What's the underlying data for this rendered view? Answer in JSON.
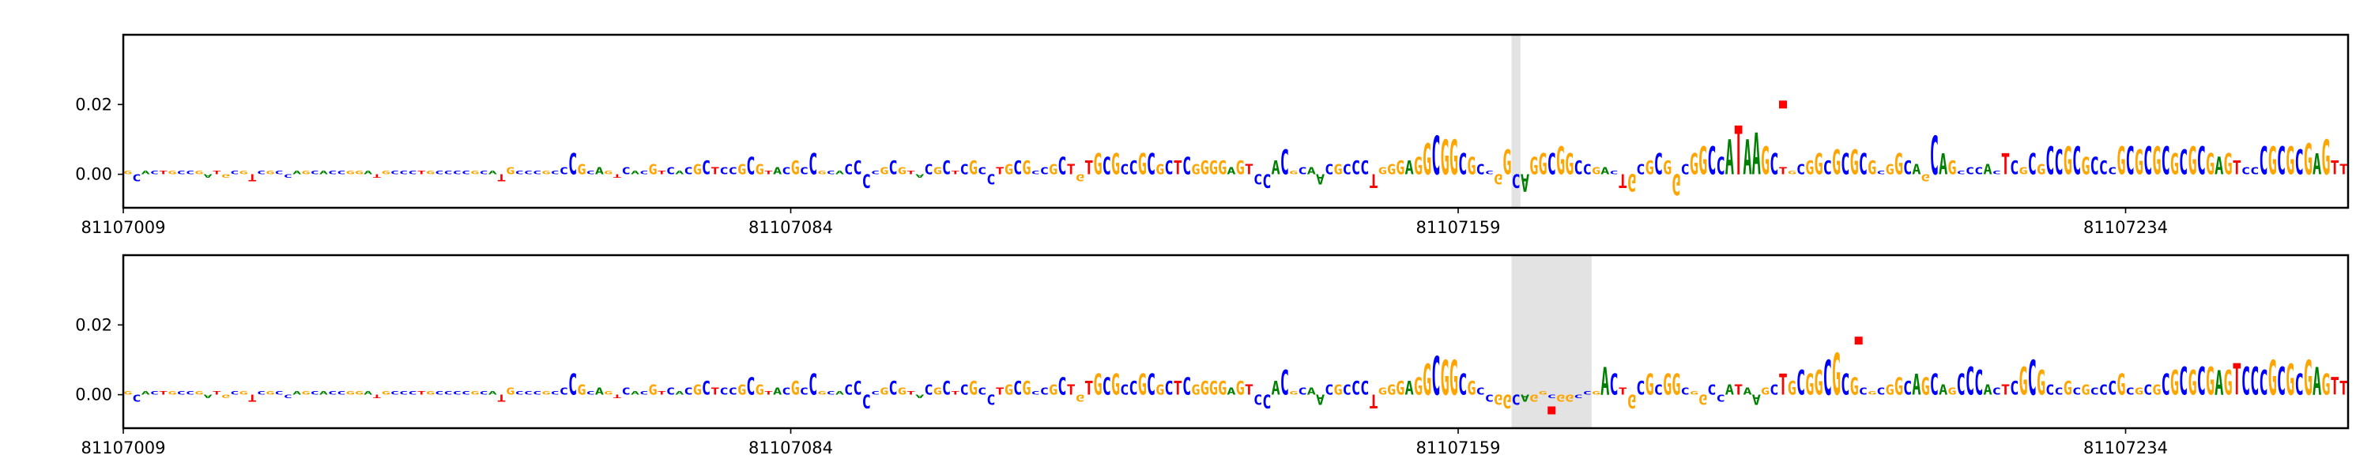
{
  "chart_data": [
    {
      "type": "logo",
      "sequence": "GCACTGCCGATGCGTCGCCAGCACCGGATGCCCTGCCCCGCATGCCCGCCCGCAGTCACGTCACGCTCCGCGTACGCCGCACCCCGCGTACGCTCGCCTGCGCCGCTGTGCGCCGCGCTCGGGGAGTCCACGCAACGCCCTGGGAGGCGGCGCCGGCAGGCGGCCGACTGCGCGGCGGCCATAAGCTGCGGCGCGCGCGGCAGCAGCCCACTCGCGCCGCGCCCGCGCGCGCGCGAGTCCCGCGCGAGTT",
      "values": [
        0.001,
        -0.002,
        0.001,
        0.001,
        0.001,
        0.001,
        0.001,
        0.001,
        0.001,
        -0.001,
        0.001,
        -0.001,
        0.001,
        0.001,
        -0.002,
        0.001,
        0.001,
        0.001,
        -0.001,
        0.001,
        0.001,
        0.001,
        0.001,
        0.001,
        0.001,
        0.001,
        0.001,
        0.001,
        -0.001,
        0.001,
        0.001,
        0.001,
        0.001,
        0.001,
        0.001,
        0.001,
        0.001,
        0.001,
        0.001,
        0.001,
        0.001,
        0.001,
        -0.002,
        0.002,
        0.001,
        0.001,
        0.001,
        0.001,
        0.001,
        0.002,
        0.006,
        0.003,
        0.001,
        0.002,
        0.001,
        -0.001,
        0.002,
        0.001,
        0.001,
        0.003,
        0.001,
        0.002,
        0.001,
        0.002,
        0.003,
        0.004,
        0.002,
        0.002,
        0.002,
        0.003,
        0.005,
        0.003,
        0.001,
        0.002,
        0.002,
        0.004,
        0.002,
        0.006,
        0.001,
        0.001,
        0.001,
        0.003,
        0.004,
        -0.004,
        0.001,
        0.002,
        0.004,
        0.002,
        0.001,
        -0.001,
        0.003,
        0.002,
        0.004,
        0.001,
        0.003,
        0.004,
        0.002,
        -0.003,
        0.002,
        0.003,
        0.004,
        0.004,
        0.001,
        0.002,
        0.003,
        0.005,
        0.003,
        -0.002,
        0.004,
        0.006,
        0.005,
        0.006,
        0.003,
        0.004,
        0.006,
        0.006,
        0.003,
        0.004,
        0.004,
        0.005,
        0.003,
        0.004,
        0.004,
        0.004,
        0.002,
        0.004,
        0.003,
        -0.003,
        -0.004,
        0.004,
        0.007,
        0.001,
        0.002,
        0.002,
        -0.003,
        0.003,
        0.003,
        0.003,
        0.004,
        0.004,
        -0.004,
        0.002,
        0.003,
        0.004,
        0.004,
        0.005,
        0.009,
        0.011,
        0.01,
        0.01,
        0.006,
        0.005,
        0.003,
        0.001,
        -0.003,
        0.007,
        -0.004,
        -0.005,
        0.005,
        0.006,
        0.006,
        0.008,
        0.006,
        0.004,
        0.003,
        0.002,
        0.002,
        0.001,
        -0.004,
        -0.005,
        0.003,
        0.004,
        0.006,
        0.004,
        -0.006,
        0.003,
        0.006,
        0.008,
        0.008,
        0.005,
        0.01,
        0.014,
        0.01,
        0.012,
        0.008,
        0.006,
        0.002,
        0.001,
        0.003,
        0.004,
        0.006,
        0.004,
        0.007,
        0.006,
        0.007,
        0.006,
        0.004,
        0.001,
        0.003,
        0.006,
        0.004,
        0.003,
        -0.002,
        0.011,
        0.006,
        0.004,
        0.001,
        0.002,
        0.002,
        0.003,
        0.001,
        0.006,
        0.004,
        0.002,
        0.006,
        0.003,
        0.008,
        0.007,
        0.008,
        0.008,
        0.005,
        0.005,
        0.004,
        0.002,
        0.008,
        0.008,
        0.007,
        0.008,
        0.008,
        0.008,
        0.006,
        0.007,
        0.008,
        0.008,
        0.006,
        0.005,
        0.006,
        0.004,
        0.002,
        0.002,
        0.008,
        0.008,
        0.008,
        0.008,
        0.007,
        0.009,
        0.006,
        0.01,
        0.004,
        0.003
      ],
      "colors": {
        "A": "#008000",
        "C": "#0000ff",
        "G": "#ffa500",
        "T": "#ff0000"
      },
      "highlight": [
        81107165,
        81107166
      ],
      "markers": {
        "x": [
          81107195.5
        ],
        "y": [
          0.02
        ],
        "color": "#ff0000"
      },
      "xlim": [
        81107009,
        81107259
      ],
      "xticks": [
        81107009,
        81107084,
        81107159,
        81107234
      ],
      "ylim": [
        -0.0096,
        0.04
      ],
      "yticks": [
        {
          "value": 0,
          "label": "0.00"
        },
        {
          "value": 0.02,
          "label": "0.02"
        }
      ]
    },
    {
      "type": "logo",
      "sequence": "GCACTGCCGATGCGTCGCCAGCACCGGATGCCCTGCCCCGCATGCCCGCCCGCAGTCACGTCACGCTCCGCGTACGCCGCACCCCGCGTACGCTCGCCTGCGCCGCTGTGCGCCGCGCTCGGGGAGTCCACGCAACGCCCTGGGAGGCGGCGCCGGCAGGCGGCCGACTGCGCGGCGGCCATAAGCTGCGGCGCGCGCGGCAGCAGCCCACTCGCGCCGCGCCCGCGCGCGCGCGAGTCCCGCGCGAGTT",
      "values": [
        0.001,
        -0.002,
        0.001,
        0.001,
        0.001,
        0.001,
        0.001,
        0.001,
        0.001,
        -0.001,
        0.001,
        -0.001,
        0.001,
        0.001,
        -0.002,
        0.001,
        0.001,
        0.001,
        -0.001,
        0.001,
        0.001,
        0.001,
        0.001,
        0.001,
        0.001,
        0.001,
        0.001,
        0.001,
        -0.001,
        0.001,
        0.001,
        0.001,
        0.001,
        0.001,
        0.001,
        0.001,
        0.001,
        0.001,
        0.001,
        0.001,
        0.001,
        0.001,
        -0.002,
        0.002,
        0.001,
        0.001,
        0.001,
        0.001,
        0.001,
        0.002,
        0.006,
        0.003,
        0.001,
        0.002,
        0.001,
        -0.001,
        0.002,
        0.001,
        0.001,
        0.003,
        0.001,
        0.002,
        0.001,
        0.002,
        0.003,
        0.004,
        0.002,
        0.002,
        0.002,
        0.003,
        0.005,
        0.003,
        0.001,
        0.002,
        0.002,
        0.004,
        0.002,
        0.006,
        0.001,
        0.001,
        0.001,
        0.003,
        0.004,
        -0.004,
        0.001,
        0.002,
        0.004,
        0.002,
        0.001,
        -0.001,
        0.003,
        0.002,
        0.004,
        0.001,
        0.003,
        0.004,
        0.002,
        -0.003,
        0.002,
        0.003,
        0.004,
        0.004,
        0.001,
        0.002,
        0.003,
        0.005,
        0.003,
        -0.002,
        0.004,
        0.006,
        0.005,
        0.006,
        0.003,
        0.004,
        0.006,
        0.006,
        0.003,
        0.004,
        0.004,
        0.005,
        0.003,
        0.004,
        0.004,
        0.004,
        0.002,
        0.004,
        0.003,
        -0.003,
        -0.004,
        0.004,
        0.007,
        0.001,
        0.002,
        0.002,
        -0.003,
        0.003,
        0.003,
        0.003,
        0.004,
        0.004,
        -0.004,
        0.002,
        0.003,
        0.004,
        0.004,
        0.005,
        0.009,
        0.011,
        0.01,
        0.01,
        0.006,
        0.004,
        0.002,
        -0.002,
        -0.003,
        -0.004,
        -0.003,
        -0.002,
        -0.002,
        0.001,
        -0.001,
        -0.002,
        -0.002,
        -0.001,
        0.001,
        0.001,
        0.008,
        0.006,
        0.002,
        -0.004,
        0.004,
        0.006,
        0.003,
        0.006,
        0.006,
        0.002,
        0.001,
        -0.003,
        0.003,
        -0.002,
        0.003,
        0.003,
        0.002,
        -0.003,
        0.002,
        0.003,
        0.006,
        0.004,
        0.007,
        0.006,
        0.007,
        0.01,
        0.012,
        0.006,
        0.005,
        0.002,
        0.001,
        0.002,
        0.003,
        0.005,
        0.004,
        0.006,
        0.005,
        0.006,
        0.003,
        0.002,
        0.006,
        0.008,
        0.007,
        0.003,
        0.002,
        0.003,
        0.004,
        0.008,
        0.01,
        0.007,
        0.003,
        0.002,
        0.004,
        0.002,
        0.003,
        0.002,
        0.003,
        0.004,
        0.006,
        0.002,
        0.002,
        0.003,
        0.003,
        0.006,
        0.007,
        0.008,
        0.007,
        0.008,
        0.008,
        0.007,
        0.007,
        0.009,
        0.008,
        0.008,
        0.007,
        0.01,
        0.008,
        0.009,
        0.006,
        0.01,
        0.008,
        0.006,
        0.005,
        0.004
      ],
      "colors": {
        "A": "#008000",
        "C": "#0000ff",
        "G": "#ffa500",
        "T": "#ff0000"
      },
      "highlight": [
        81107165,
        81107174
      ],
      "markers": {
        "x": [
          81107204,
          81107169.5
        ],
        "y": [
          0.0155,
          -0.0045
        ],
        "color": "#ff0000"
      },
      "xlim": [
        81107009,
        81107259
      ],
      "xticks": [
        81107009,
        81107084,
        81107159,
        81107234
      ],
      "ylim": [
        -0.0096,
        0.04
      ],
      "yticks": [
        {
          "value": 0,
          "label": "0.00"
        },
        {
          "value": 0.02,
          "label": "0.02"
        }
      ]
    }
  ]
}
